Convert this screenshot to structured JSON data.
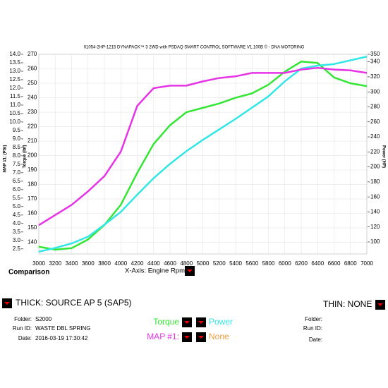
{
  "chart_data": {
    "type": "line",
    "title": "01054-2HP-1215 DYNAPACK™ 3 2WD with PSDAQ SMART CONTROL SOFTWARE V1.100B © - DNA MOTORING",
    "x_label": "X-Axis: Engine Rpm",
    "y_label": "Torque (lbf)",
    "y2_label": "Power (HP)",
    "y3_label": "MAP #1: (PSI)",
    "x": [
      3000,
      3200,
      3400,
      3600,
      3800,
      4000,
      4200,
      4400,
      4600,
      4800,
      5000,
      5200,
      5400,
      5600,
      5800,
      6000,
      6200,
      6400,
      6600,
      6800,
      7000
    ],
    "xlim": [
      3000,
      7000
    ],
    "xticks": [
      3000,
      3200,
      3400,
      3600,
      3800,
      4000,
      4200,
      4400,
      4600,
      4800,
      5000,
      5200,
      5400,
      5600,
      5800,
      6000,
      6200,
      6400,
      6600,
      6800,
      7000
    ],
    "ylim": [
      132,
      270
    ],
    "yticks": [
      140,
      150,
      160,
      170,
      180,
      190,
      200,
      210,
      220,
      230,
      240,
      250,
      260,
      270
    ],
    "y2lim": [
      84,
      350
    ],
    "y2ticks": [
      100,
      120,
      140,
      160,
      180,
      200,
      220,
      240,
      260,
      280,
      300,
      320,
      340,
      350
    ],
    "y3lim": [
      2.2,
      14
    ],
    "y3ticks": [
      {
        "value": 2.5,
        "label": "2.5"
      },
      {
        "value": 3,
        "label": "3.0"
      },
      {
        "value": 3.5,
        "label": "3.5"
      },
      {
        "value": 4,
        "label": "4.0"
      },
      {
        "value": 4.5,
        "label": "4.5"
      },
      {
        "value": 5,
        "label": "5.0"
      },
      {
        "value": 5.5,
        "label": "5.5"
      },
      {
        "value": 6,
        "label": "6.0"
      },
      {
        "value": 6.5,
        "label": "6.5"
      },
      {
        "value": 7,
        "label": "7.0"
      },
      {
        "value": 7.5,
        "label": "7.5"
      },
      {
        "value": 8,
        "label": "8.0"
      },
      {
        "value": 8.5,
        "label": "8.5"
      },
      {
        "value": 9,
        "label": "9.0"
      },
      {
        "value": 9.5,
        "label": "9.5"
      },
      {
        "value": 10,
        "label": "10.0"
      },
      {
        "value": 10.5,
        "label": "10.5"
      },
      {
        "value": 11,
        "label": "11.0"
      },
      {
        "value": 11.5,
        "label": "11.5"
      },
      {
        "value": 12,
        "label": "12.0"
      },
      {
        "value": 12.5,
        "label": "12.5"
      },
      {
        "value": 13,
        "label": "13.0"
      },
      {
        "value": 13.5,
        "label": "13.5"
      },
      {
        "value": 14,
        "label": "14.0"
      }
    ],
    "grid": true,
    "series": [
      {
        "name": "Torque",
        "color": "#33e633",
        "axis": "y",
        "values": [
          137,
          135,
          136,
          142,
          152,
          166,
          188,
          208,
          221,
          230,
          233,
          236,
          240,
          243,
          249,
          258,
          265,
          264,
          254,
          250,
          248
        ]
      },
      {
        "name": "Power",
        "color": "#33e6e6",
        "axis": "y2",
        "values": [
          87,
          92,
          98,
          107,
          123,
          140,
          163,
          185,
          204,
          221,
          236,
          250,
          264,
          279,
          294,
          314,
          331,
          335,
          337,
          342,
          347
        ]
      },
      {
        "name": "MAP #1:",
        "color": "#e633e6",
        "axis": "y3",
        "values": [
          3.9,
          4.5,
          5.1,
          5.9,
          6.8,
          8.25,
          10.95,
          12,
          12.15,
          12.15,
          12.4,
          12.6,
          12.7,
          12.9,
          12.9,
          12.9,
          13.1,
          13.2,
          13.1,
          13.05,
          12.9
        ]
      }
    ]
  },
  "footer": {
    "comparison": "Comparison",
    "thick": "THICK: SOURCE AP 5 (SAP5)",
    "thin": "THIN: NONE",
    "left": {
      "folder_label": "Folder:",
      "folder": "S2000",
      "run_label": "Run ID:",
      "run": "WASTE DBL SPRING",
      "date_label": "Date:",
      "date": "2016-03-19 17:30:42"
    },
    "right": {
      "folder_label": "Folder:",
      "run_label": "Run ID:",
      "date_label": "Date:"
    },
    "none": "None"
  }
}
